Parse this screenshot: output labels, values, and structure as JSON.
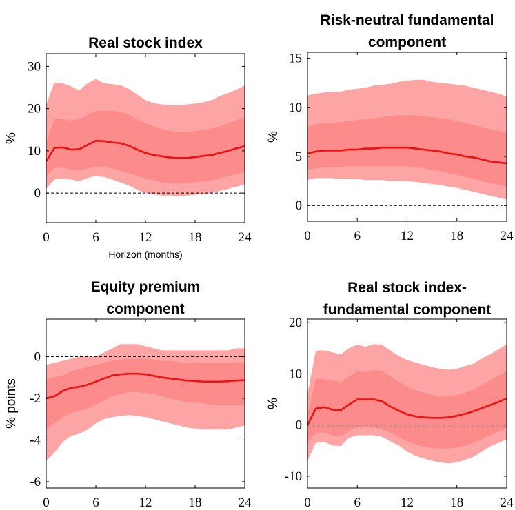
{
  "chart_data": [
    {
      "type": "line",
      "title_lines": [
        "Real stock index"
      ],
      "xlabel": "Horizon (months)",
      "ylabel": "%",
      "xlim": [
        0,
        24
      ],
      "ylim": [
        -7,
        33
      ],
      "xticks": [
        0,
        6,
        12,
        18,
        24
      ],
      "yticks": [
        0,
        10,
        20,
        30
      ],
      "x": [
        0,
        1,
        2,
        3,
        4,
        5,
        6,
        7,
        8,
        9,
        10,
        11,
        12,
        13,
        14,
        15,
        16,
        17,
        18,
        19,
        20,
        21,
        22,
        23,
        24
      ],
      "series": [
        {
          "role": "outer-band",
          "upper": [
            21,
            26.2,
            26,
            25.3,
            24.3,
            26,
            27,
            26,
            25.8,
            25.5,
            24.7,
            23.3,
            22,
            21.3,
            21,
            20.8,
            20.8,
            21,
            21.2,
            21.5,
            22,
            23,
            23.7,
            24.5,
            25.5
          ],
          "lower": [
            1,
            3.2,
            3.4,
            3.2,
            2.8,
            3.6,
            4,
            3.8,
            3.2,
            2.5,
            1.8,
            0.8,
            0,
            -0.3,
            -0.6,
            -0.6,
            -0.7,
            -0.6,
            -0.4,
            -0.2,
            0,
            0.5,
            1,
            1.5,
            2
          ]
        },
        {
          "role": "inner-band",
          "upper": [
            12,
            17.5,
            17.5,
            17.2,
            17.5,
            18.5,
            19.5,
            19.5,
            19.5,
            19.2,
            18.5,
            17.5,
            16.5,
            15.8,
            15.2,
            14.7,
            14.5,
            14.5,
            14.7,
            15,
            15.3,
            15.8,
            16.5,
            17.2,
            18
          ],
          "lower": [
            4,
            6,
            6,
            5.6,
            5.3,
            5.8,
            6.3,
            6.2,
            5.8,
            5.3,
            4.8,
            4,
            3.5,
            3,
            2.5,
            2.3,
            2.2,
            2.3,
            2.5,
            2.8,
            3,
            3.5,
            4,
            4.5,
            5
          ]
        },
        {
          "role": "median",
          "values": [
            7.5,
            10.7,
            10.8,
            10.3,
            10.4,
            11.4,
            12.4,
            12.3,
            12,
            11.8,
            11.2,
            10.3,
            9.5,
            9,
            8.7,
            8.4,
            8.3,
            8.3,
            8.5,
            8.8,
            9,
            9.5,
            10,
            10.6,
            11.1
          ]
        }
      ],
      "zero_line": true
    },
    {
      "type": "line",
      "title_lines": [
        "Risk-neutral fundamental",
        "component"
      ],
      "xlabel": "",
      "ylabel": "%",
      "xlim": [
        0,
        24
      ],
      "ylim": [
        -1.6,
        15.6
      ],
      "xticks": [
        0,
        6,
        12,
        18,
        24
      ],
      "yticks": [
        0,
        5,
        10,
        15
      ],
      "x": [
        0,
        1,
        2,
        3,
        4,
        5,
        6,
        7,
        8,
        9,
        10,
        11,
        12,
        13,
        14,
        15,
        16,
        17,
        18,
        19,
        20,
        21,
        22,
        23,
        24
      ],
      "series": [
        {
          "role": "outer-band",
          "upper": [
            11.2,
            11.4,
            11.5,
            11.6,
            11.6,
            11.8,
            11.9,
            12,
            12.2,
            12.3,
            12.4,
            12.6,
            12.7,
            12.8,
            12.8,
            12.6,
            12.5,
            12.4,
            12.3,
            12.2,
            12,
            11.8,
            11.6,
            11.4,
            11.1
          ],
          "lower": [
            2.6,
            2.8,
            2.8,
            2.8,
            2.7,
            2.7,
            2.7,
            2.6,
            2.6,
            2.6,
            2.5,
            2.5,
            2.5,
            2.4,
            2.3,
            2.2,
            2.1,
            1.9,
            1.8,
            1.6,
            1.4,
            1.2,
            1,
            0.8,
            0.6
          ]
        },
        {
          "role": "inner-band",
          "upper": [
            8,
            8.3,
            8.4,
            8.4,
            8.5,
            8.6,
            8.7,
            8.8,
            8.9,
            9,
            9.1,
            9.2,
            9.2,
            9.2,
            9.1,
            9,
            8.9,
            8.8,
            8.6,
            8.4,
            8.2,
            8,
            7.8,
            7.6,
            7.4
          ],
          "lower": [
            3.6,
            3.8,
            3.9,
            3.9,
            3.9,
            4,
            4,
            4,
            4,
            4,
            4,
            4,
            4,
            3.9,
            3.8,
            3.6,
            3.5,
            3.3,
            3.1,
            2.9,
            2.7,
            2.5,
            2.3,
            2.1,
            1.9
          ]
        },
        {
          "role": "median",
          "values": [
            5.3,
            5.5,
            5.6,
            5.6,
            5.6,
            5.7,
            5.7,
            5.8,
            5.8,
            5.9,
            5.9,
            5.9,
            5.9,
            5.8,
            5.7,
            5.6,
            5.5,
            5.3,
            5.2,
            5,
            4.9,
            4.7,
            4.5,
            4.4,
            4.3
          ]
        }
      ],
      "zero_line": true
    },
    {
      "type": "line",
      "title_lines": [
        "Equity premium",
        "component"
      ],
      "xlabel": "",
      "ylabel": "% points",
      "xlim": [
        0,
        24
      ],
      "ylim": [
        -6.3,
        1.8
      ],
      "xticks": [
        0,
        6,
        12,
        18,
        24
      ],
      "yticks": [
        -6,
        -4,
        -2,
        0
      ],
      "x": [
        0,
        1,
        2,
        3,
        4,
        5,
        6,
        7,
        8,
        9,
        10,
        11,
        12,
        13,
        14,
        15,
        16,
        17,
        18,
        19,
        20,
        21,
        22,
        23,
        24
      ],
      "series": [
        {
          "role": "outer-band",
          "upper": [
            -0.4,
            -0.3,
            -0.2,
            -0.1,
            0,
            0,
            0,
            0.2,
            0.4,
            0.6,
            0.6,
            0.6,
            0.5,
            0.4,
            0.3,
            0.3,
            0.3,
            0.3,
            0.3,
            0.3,
            0.3,
            0.3,
            0.3,
            0.4,
            0.4
          ],
          "lower": [
            -5,
            -4.6,
            -4.1,
            -3.8,
            -3.7,
            -3.5,
            -3.2,
            -3,
            -2.9,
            -2.85,
            -2.8,
            -2.85,
            -2.9,
            -3,
            -3.1,
            -3.2,
            -3.3,
            -3.4,
            -3.45,
            -3.5,
            -3.5,
            -3.5,
            -3.5,
            -3.4,
            -3.3
          ]
        },
        {
          "role": "inner-band",
          "upper": [
            -1.1,
            -1,
            -0.9,
            -0.7,
            -0.6,
            -0.5,
            -0.4,
            -0.3,
            -0.2,
            -0.15,
            -0.1,
            -0.1,
            -0.1,
            -0.15,
            -0.2,
            -0.2,
            -0.25,
            -0.3,
            -0.3,
            -0.3,
            -0.3,
            -0.3,
            -0.3,
            -0.3,
            -0.3
          ],
          "lower": [
            -3.5,
            -3.2,
            -2.9,
            -2.7,
            -2.6,
            -2.5,
            -2.3,
            -2.1,
            -1.9,
            -1.8,
            -1.7,
            -1.7,
            -1.75,
            -1.8,
            -1.9,
            -2,
            -2.1,
            -2.2,
            -2.2,
            -2.25,
            -2.3,
            -2.3,
            -2.3,
            -2.3,
            -2.3
          ]
        },
        {
          "role": "median",
          "values": [
            -2,
            -1.9,
            -1.65,
            -1.5,
            -1.45,
            -1.35,
            -1.2,
            -1.05,
            -0.9,
            -0.85,
            -0.82,
            -0.82,
            -0.85,
            -0.92,
            -1,
            -1.05,
            -1.1,
            -1.15,
            -1.17,
            -1.2,
            -1.2,
            -1.2,
            -1.18,
            -1.15,
            -1.13
          ]
        }
      ],
      "zero_line": true
    },
    {
      "type": "line",
      "title_lines": [
        "Real stock index-",
        "fundamental component"
      ],
      "xlabel": "",
      "ylabel": "%",
      "xlim": [
        0,
        24
      ],
      "ylim": [
        -12.3,
        20.7
      ],
      "xticks": [
        0,
        6,
        12,
        18,
        24
      ],
      "yticks": [
        -10,
        0,
        10,
        20
      ],
      "x": [
        0,
        1,
        2,
        3,
        4,
        5,
        6,
        7,
        8,
        9,
        10,
        11,
        12,
        13,
        14,
        15,
        16,
        17,
        18,
        19,
        20,
        21,
        22,
        23,
        24
      ],
      "series": [
        {
          "role": "outer-band",
          "upper": [
            6,
            14.5,
            14.6,
            14.2,
            13.8,
            15,
            15.7,
            15.3,
            15.8,
            15.7,
            14.5,
            13.5,
            12.7,
            12.2,
            11.8,
            11.3,
            11,
            10.8,
            11,
            11.5,
            12,
            13,
            13.8,
            14.8,
            15.8
          ],
          "lower": [
            -7,
            -3.5,
            -3.3,
            -4,
            -4.1,
            -2.5,
            -2,
            -2,
            -2,
            -2.3,
            -3.2,
            -4,
            -5.2,
            -6,
            -6.5,
            -7,
            -7.3,
            -7.5,
            -7.3,
            -6.8,
            -6.2,
            -5.2,
            -4.2,
            -3.5,
            -2.8
          ]
        },
        {
          "role": "inner-band",
          "upper": [
            2,
            9,
            9,
            8.7,
            8.4,
            9.5,
            10.5,
            10.3,
            10.8,
            10.5,
            9.5,
            8.5,
            7.5,
            6.8,
            6.3,
            5.9,
            5.7,
            5.7,
            5.9,
            6.3,
            6.9,
            7.8,
            8.7,
            9.6,
            10.5
          ],
          "lower": [
            -3.5,
            -1.5,
            -1.5,
            -2,
            -2.2,
            -1.2,
            -0.5,
            -0.5,
            -0.5,
            -0.8,
            -1.5,
            -2.3,
            -3.2,
            -3.8,
            -4.2,
            -4.5,
            -4.6,
            -4.6,
            -4.4,
            -4,
            -3.5,
            -2.8,
            -2,
            -1.3,
            -0.5
          ]
        },
        {
          "role": "median",
          "values": [
            0,
            3.2,
            3.5,
            3,
            2.9,
            4,
            5,
            5,
            5,
            4.6,
            3.6,
            2.8,
            2.1,
            1.7,
            1.5,
            1.4,
            1.4,
            1.5,
            1.8,
            2.2,
            2.7,
            3.3,
            3.9,
            4.5,
            5.2
          ]
        }
      ],
      "zero_line": true
    }
  ],
  "colors": {
    "outer_band": "#fda4a4",
    "inner_band": "#fc8b8b",
    "median_line": "#ee1111",
    "zero_line": "#000000",
    "axes": "#000000"
  }
}
